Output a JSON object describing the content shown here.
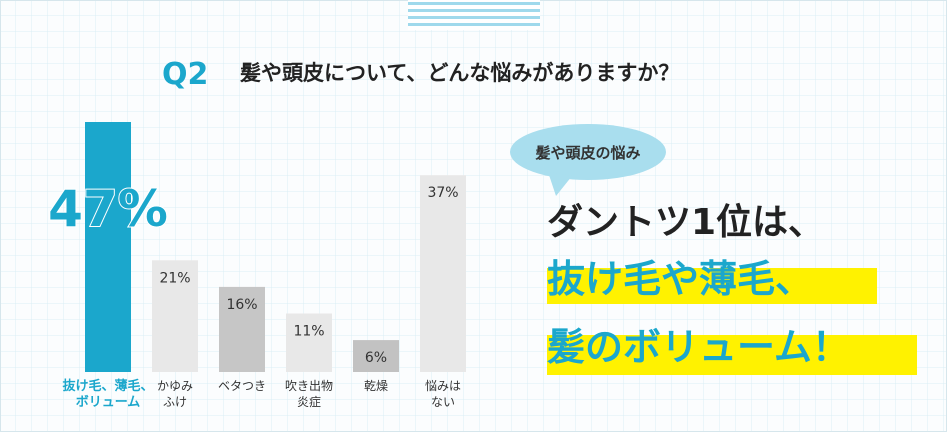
{
  "header": {
    "number": "Q2",
    "question": "髪や頭皮について、どんな悩みがありますか？"
  },
  "bubble": "髪や頭皮の悩み",
  "headline": [
    "ダントツ1位は、",
    "抜け毛や薄毛、",
    "髪のボリューム！"
  ],
  "chart_data": {
    "type": "bar",
    "categories": [
      [
        "抜け毛、薄毛、",
        "ボリューム"
      ],
      [
        "かゆみ",
        "ふけ"
      ],
      [
        "ベタつき"
      ],
      [
        "吹き出物",
        "炎症"
      ],
      [
        "乾燥"
      ],
      [
        "悩みは",
        "ない"
      ]
    ],
    "values": [
      47,
      21,
      16,
      11,
      6,
      37
    ],
    "value_labels": [
      "47%",
      "21%",
      "16%",
      "11%",
      "6%",
      "37%"
    ],
    "colors": [
      "#1ba7cc",
      "#e8e8e8",
      "#c6c6c6",
      "#e8e8e8",
      "#c2c2c2",
      "#e8e8e8"
    ]
  }
}
